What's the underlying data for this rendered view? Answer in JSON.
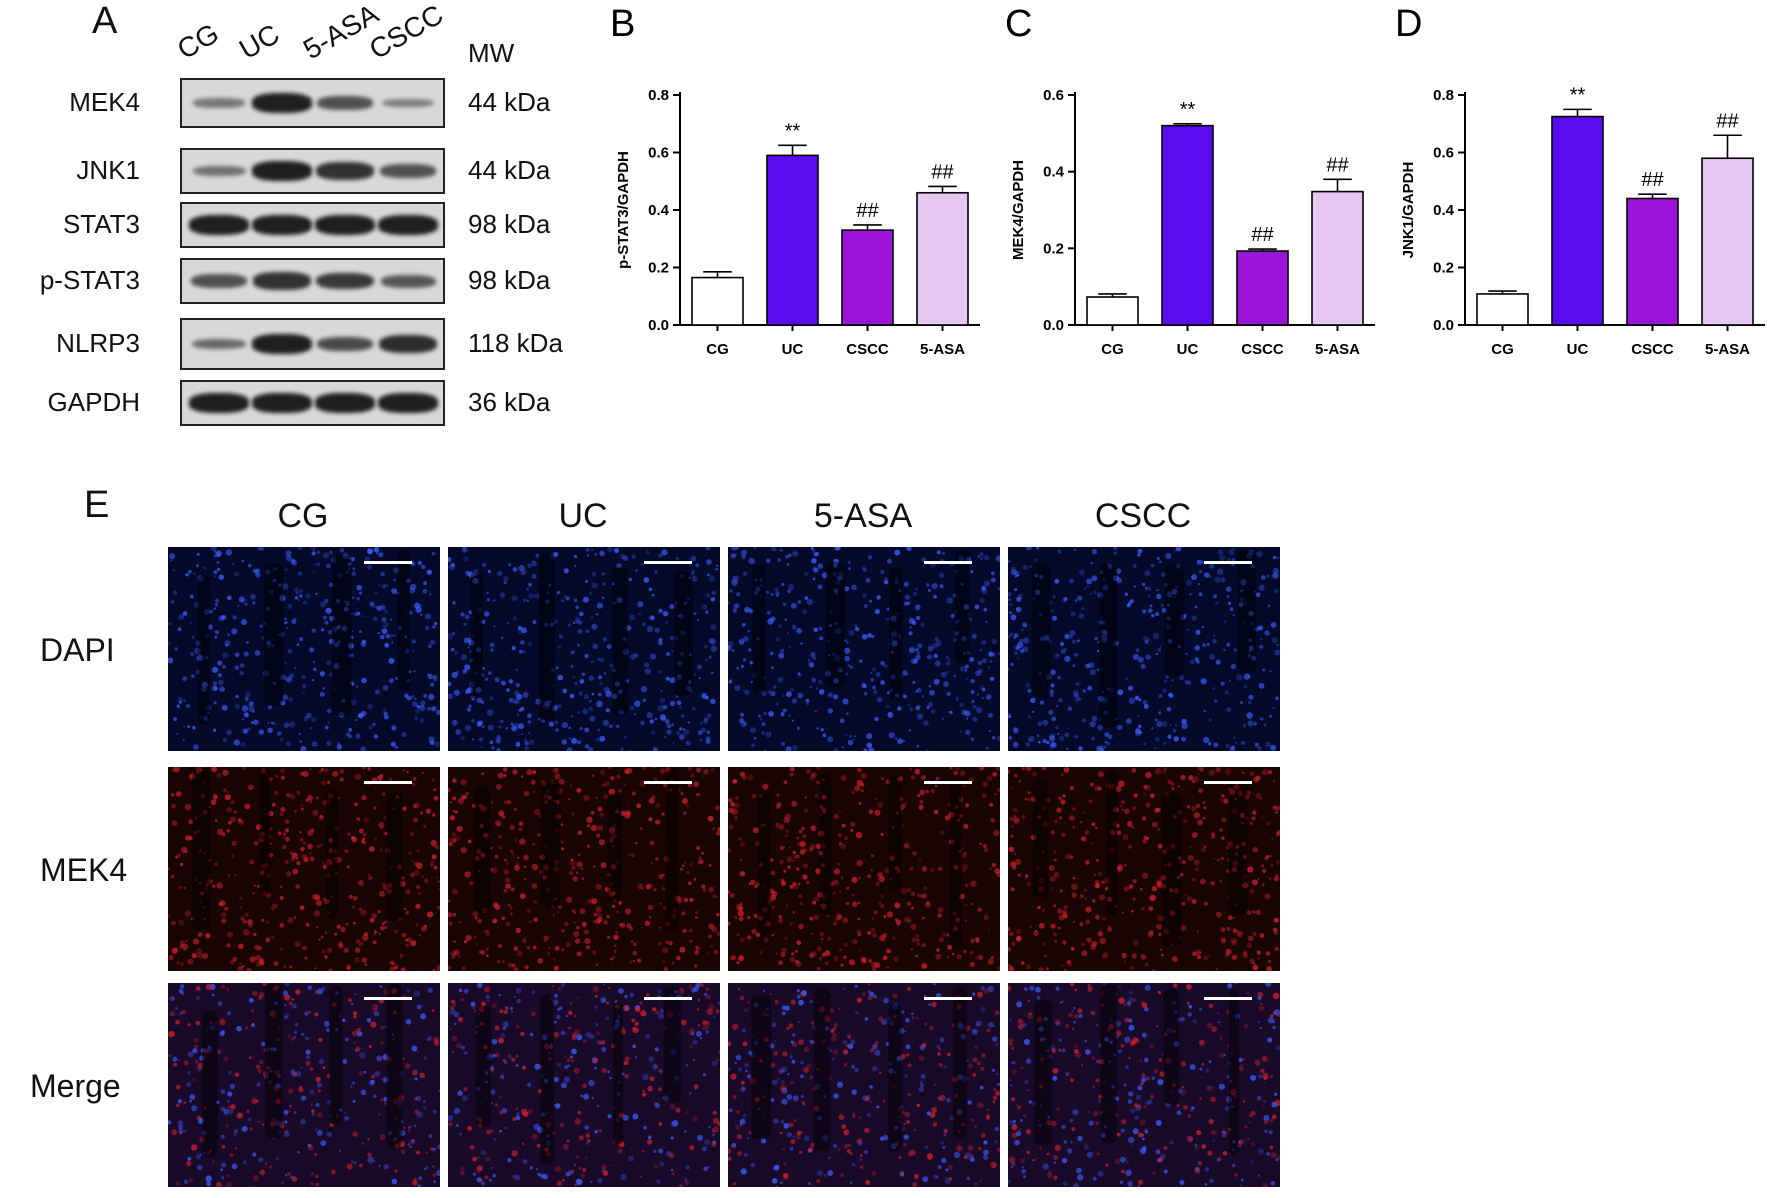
{
  "panelA": {
    "letter": "A",
    "lanes": [
      "CG",
      "UC",
      "5-ASA",
      "CSCC"
    ],
    "mw_title": "MW",
    "rows": [
      {
        "label": "MEK4",
        "mw": "44 kDa",
        "intensity": [
          0.25,
          0.95,
          0.55,
          0.2
        ]
      },
      {
        "label": "JNK1",
        "mw": "44 kDa",
        "intensity": [
          0.3,
          0.95,
          0.8,
          0.55
        ]
      },
      {
        "label": "STAT3",
        "mw": "98 kDa",
        "intensity": [
          0.95,
          0.95,
          0.95,
          0.95
        ]
      },
      {
        "label": "p-STAT3",
        "mw": "98 kDa",
        "intensity": [
          0.55,
          0.8,
          0.75,
          0.5
        ]
      },
      {
        "label": "NLRP3",
        "mw": "118 kDa",
        "intensity": [
          0.35,
          0.95,
          0.6,
          0.85
        ]
      },
      {
        "label": "GAPDH",
        "mw": "36 kDa",
        "intensity": [
          0.95,
          0.95,
          0.95,
          0.95
        ]
      }
    ]
  },
  "panelE": {
    "letter": "E",
    "columns": [
      "CG",
      "UC",
      "5-ASA",
      "CSCC"
    ],
    "rows": [
      {
        "label": "DAPI",
        "colors": [
          "#3a5cff"
        ]
      },
      {
        "label": "MEK4",
        "colors": [
          "#d0202a"
        ]
      },
      {
        "label": "Merge",
        "colors": [
          "#3a5cff",
          "#d0202a"
        ]
      }
    ]
  },
  "chart_data": [
    {
      "panel": "B",
      "type": "bar",
      "ylabel": "p-STAT3/GAPDH",
      "categories": [
        "CG",
        "UC",
        "CSCC",
        "5-ASA"
      ],
      "values": [
        0.165,
        0.59,
        0.33,
        0.46
      ],
      "errors": [
        0.02,
        0.035,
        0.018,
        0.022
      ],
      "annotations": [
        "",
        "**",
        "##",
        "##"
      ],
      "ylim": [
        0,
        0.8
      ],
      "yticks": [
        0.0,
        0.2,
        0.4,
        0.6,
        0.8
      ],
      "ytick_labels": [
        "0.0",
        "0.2",
        "0.4",
        "0.6",
        "0.8"
      ],
      "colors": [
        "#ffffff",
        "#5b0bf0",
        "#9c14db",
        "#e6c6f2"
      ]
    },
    {
      "panel": "C",
      "type": "bar",
      "ylabel": "MEK4/GAPDH",
      "categories": [
        "CG",
        "UC",
        "CSCC",
        "5-ASA"
      ],
      "values": [
        0.073,
        0.52,
        0.193,
        0.348
      ],
      "errors": [
        0.008,
        0.005,
        0.005,
        0.032
      ],
      "annotations": [
        "",
        "**",
        "##",
        "##"
      ],
      "ylim": [
        0,
        0.6
      ],
      "yticks": [
        0.0,
        0.2,
        0.4,
        0.6
      ],
      "ytick_labels": [
        "0.0",
        "0.2",
        "0.4",
        "0.6"
      ],
      "colors": [
        "#ffffff",
        "#5b0bf0",
        "#9c14db",
        "#e6c6f2"
      ]
    },
    {
      "panel": "D",
      "type": "bar",
      "ylabel": "JNK1/GAPDH",
      "categories": [
        "CG",
        "UC",
        "CSCC",
        "5-ASA"
      ],
      "values": [
        0.108,
        0.725,
        0.44,
        0.58
      ],
      "errors": [
        0.01,
        0.025,
        0.015,
        0.08
      ],
      "annotations": [
        "",
        "**",
        "##",
        "##"
      ],
      "ylim": [
        0,
        0.8
      ],
      "yticks": [
        0.0,
        0.2,
        0.4,
        0.6,
        0.8
      ],
      "ytick_labels": [
        "0.0",
        "0.2",
        "0.4",
        "0.6",
        "0.8"
      ],
      "colors": [
        "#ffffff",
        "#5b0bf0",
        "#9c14db",
        "#e6c6f2"
      ]
    }
  ]
}
